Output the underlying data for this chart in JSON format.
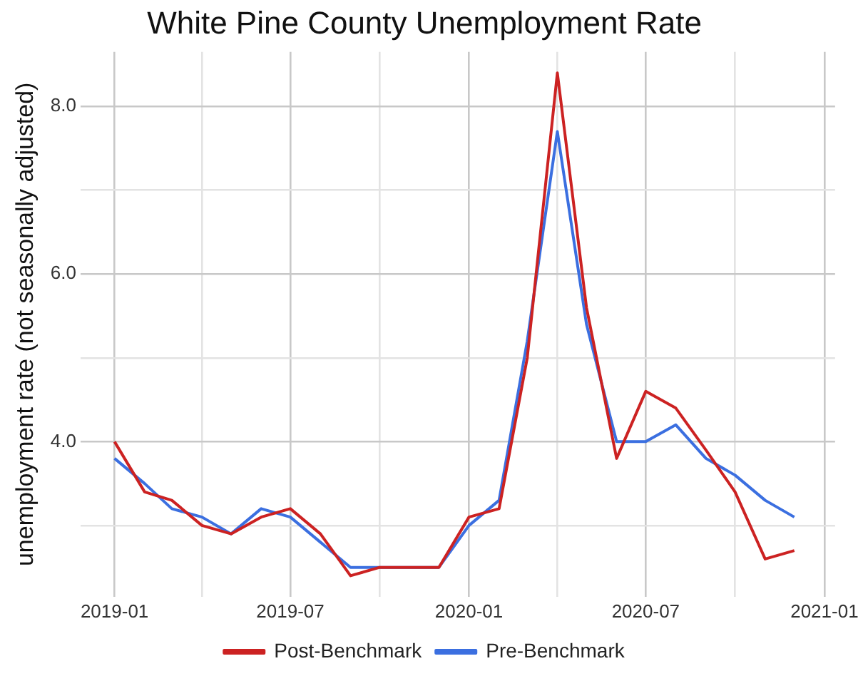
{
  "chart_data": {
    "type": "line",
    "title": "White Pine County Unemployment Rate",
    "ylabel": "unemployment rate (not seasonally adjusted)",
    "x": [
      "2019-01",
      "2019-02",
      "2019-03",
      "2019-04",
      "2019-05",
      "2019-06",
      "2019-07",
      "2019-08",
      "2019-09",
      "2019-10",
      "2019-11",
      "2019-12",
      "2020-01",
      "2020-02",
      "2020-03",
      "2020-04",
      "2020-05",
      "2020-06",
      "2020-07",
      "2020-08",
      "2020-09",
      "2020-10",
      "2020-11",
      "2020-12"
    ],
    "series": [
      {
        "name": "Post-Benchmark",
        "color": "#cc2222",
        "values": [
          4.0,
          3.4,
          3.3,
          3.0,
          2.9,
          3.1,
          3.2,
          2.9,
          2.4,
          2.5,
          2.5,
          2.5,
          3.1,
          3.2,
          5.0,
          8.4,
          5.6,
          3.8,
          4.6,
          4.4,
          3.9,
          3.4,
          2.6,
          2.7
        ]
      },
      {
        "name": "Pre-Benchmark",
        "color": "#3b6fe0",
        "values": [
          3.8,
          3.5,
          3.2,
          3.1,
          2.9,
          3.2,
          3.1,
          2.8,
          2.5,
          2.5,
          2.5,
          2.5,
          3.0,
          3.3,
          5.2,
          7.7,
          5.4,
          4.0,
          4.0,
          4.2,
          3.8,
          3.6,
          3.3,
          3.1
        ]
      }
    ],
    "xlim": [
      "2018-11-27",
      "2021-01-12"
    ],
    "xticks": [
      "2019-01",
      {
        "value": "2019-04",
        "label": null
      },
      "2019-07",
      {
        "value": "2019-10",
        "label": null
      },
      "2020-01",
      {
        "value": "2020-04",
        "label": null
      },
      "2020-07",
      {
        "value": "2020-10",
        "label": null
      },
      "2021-01"
    ],
    "ylim": [
      2.15,
      8.65
    ],
    "yticks": [
      {
        "value": 3,
        "label": null
      },
      {
        "value": 4,
        "label": "4.0"
      },
      {
        "value": 5,
        "label": null
      },
      {
        "value": 6,
        "label": "6.0"
      },
      {
        "value": 7,
        "label": null
      },
      {
        "value": 8,
        "label": "8.0"
      }
    ],
    "grid": true,
    "legend": "bottom",
    "marker": "none",
    "line_style": "solid"
  }
}
